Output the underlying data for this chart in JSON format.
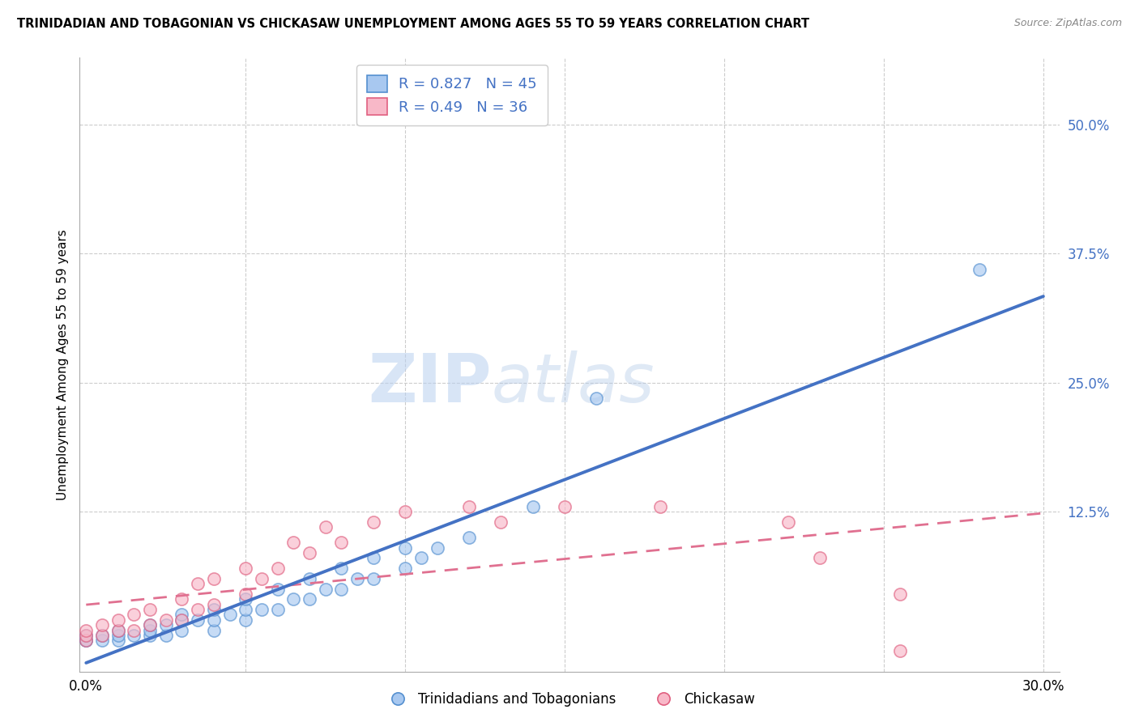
{
  "title": "TRINIDADIAN AND TOBAGONIAN VS CHICKASAW UNEMPLOYMENT AMONG AGES 55 TO 59 YEARS CORRELATION CHART",
  "source": "Source: ZipAtlas.com",
  "ylabel": "Unemployment Among Ages 55 to 59 years",
  "xlim": [
    -0.002,
    0.305
  ],
  "ylim": [
    -0.03,
    0.565
  ],
  "ytick_vals": [
    0.0,
    0.125,
    0.25,
    0.375,
    0.5
  ],
  "ytick_labels": [
    "",
    "12.5%",
    "25.0%",
    "37.5%",
    "50.0%"
  ],
  "xtick_vals": [
    0.0,
    0.05,
    0.1,
    0.15,
    0.2,
    0.25,
    0.3
  ],
  "xtick_labels": [
    "0.0%",
    "",
    "",
    "",
    "",
    "",
    "30.0%"
  ],
  "blue_R": 0.827,
  "blue_N": 45,
  "pink_R": 0.49,
  "pink_N": 36,
  "blue_face": "#a8c8f0",
  "blue_edge": "#5590d0",
  "pink_face": "#f8b8c8",
  "pink_edge": "#e06080",
  "blue_line": "#4472c4",
  "pink_line": "#e07090",
  "legend_blue": "Trinidadians and Tobagonians",
  "legend_pink": "Chickasaw",
  "watermark_zip": "ZIP",
  "watermark_atlas": "atlas",
  "title_color": "#000000",
  "source_color": "#888888",
  "tick_color": "#4472c4",
  "grid_color": "#cccccc",
  "blue_x": [
    0.0,
    0.0,
    0.0,
    0.005,
    0.005,
    0.01,
    0.01,
    0.01,
    0.015,
    0.02,
    0.02,
    0.02,
    0.025,
    0.025,
    0.03,
    0.03,
    0.03,
    0.035,
    0.04,
    0.04,
    0.04,
    0.045,
    0.05,
    0.05,
    0.05,
    0.055,
    0.06,
    0.06,
    0.065,
    0.07,
    0.07,
    0.075,
    0.08,
    0.08,
    0.085,
    0.09,
    0.09,
    0.1,
    0.1,
    0.105,
    0.11,
    0.12,
    0.14,
    0.16,
    0.28
  ],
  "blue_y": [
    0.0,
    0.0,
    0.005,
    0.0,
    0.005,
    0.0,
    0.005,
    0.01,
    0.005,
    0.005,
    0.01,
    0.015,
    0.005,
    0.015,
    0.01,
    0.02,
    0.025,
    0.02,
    0.01,
    0.02,
    0.03,
    0.025,
    0.02,
    0.03,
    0.04,
    0.03,
    0.03,
    0.05,
    0.04,
    0.04,
    0.06,
    0.05,
    0.05,
    0.07,
    0.06,
    0.06,
    0.08,
    0.07,
    0.09,
    0.08,
    0.09,
    0.1,
    0.13,
    0.235,
    0.36
  ],
  "pink_x": [
    0.0,
    0.0,
    0.0,
    0.005,
    0.005,
    0.01,
    0.01,
    0.015,
    0.015,
    0.02,
    0.02,
    0.025,
    0.03,
    0.03,
    0.035,
    0.035,
    0.04,
    0.04,
    0.05,
    0.05,
    0.055,
    0.06,
    0.065,
    0.07,
    0.075,
    0.08,
    0.09,
    0.1,
    0.12,
    0.13,
    0.15,
    0.18,
    0.22,
    0.23,
    0.255,
    0.255
  ],
  "pink_y": [
    0.0,
    0.005,
    0.01,
    0.005,
    0.015,
    0.01,
    0.02,
    0.01,
    0.025,
    0.015,
    0.03,
    0.02,
    0.02,
    0.04,
    0.03,
    0.055,
    0.035,
    0.06,
    0.045,
    0.07,
    0.06,
    0.07,
    0.095,
    0.085,
    0.11,
    0.095,
    0.115,
    0.125,
    0.13,
    0.115,
    0.13,
    0.13,
    0.115,
    0.08,
    0.045,
    -0.01
  ]
}
